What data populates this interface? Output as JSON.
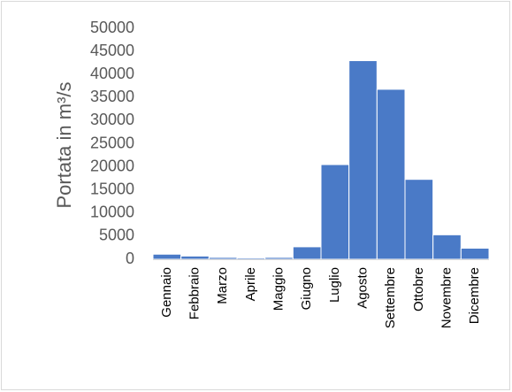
{
  "chart_data": {
    "type": "bar",
    "title": "",
    "xlabel": "",
    "ylabel": "Portata in m³/s",
    "ylim": [
      0,
      50000
    ],
    "yticks": [
      0,
      5000,
      10000,
      15000,
      20000,
      25000,
      30000,
      35000,
      40000,
      45000,
      50000
    ],
    "grid": false,
    "legend": "none",
    "categories": [
      "Gennaio",
      "Febbraio",
      "Marzo",
      "Aprile",
      "Maggio",
      "Giugno",
      "Luglio",
      "Agosto",
      "Settembre",
      "Ottobre",
      "Novembre",
      "Dicembre"
    ],
    "values": [
      1100,
      700,
      400,
      300,
      400,
      2700,
      20500,
      43000,
      36800,
      17300,
      5300,
      2400
    ],
    "colors": {
      "bar": "#4a7ac7",
      "bar_edge": "#ffffff",
      "axis": "#d9d9d9",
      "text": "#595959"
    }
  }
}
